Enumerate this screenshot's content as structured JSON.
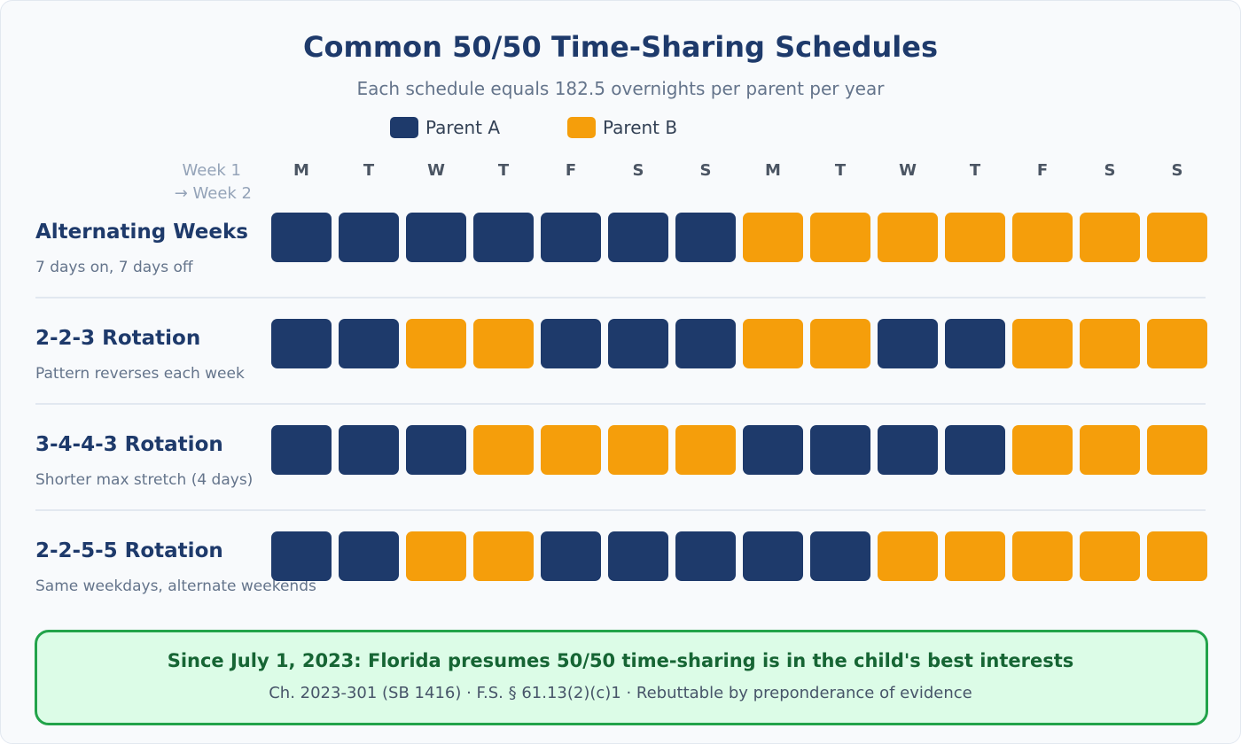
{
  "title": "Common 50/50 Time-Sharing Schedules",
  "subtitle": "Each schedule equals 182.5 overnights per parent per year",
  "legend": [
    {
      "label": "Parent A",
      "color": "#1e3a6b"
    },
    {
      "label": "Parent B",
      "color": "#f59e0b"
    }
  ],
  "week_label_1": "Week 1",
  "week_label_2": "→ Week 2",
  "days": [
    "M",
    "T",
    "W",
    "T",
    "F",
    "S",
    "S",
    "M",
    "T",
    "W",
    "T",
    "F",
    "S",
    "S"
  ],
  "schedules": [
    {
      "name": "Alternating Weeks",
      "description": "7 days on, 7 days off",
      "pattern": "AAAAAAABBBBBBB"
    },
    {
      "name": "2-2-3 Rotation",
      "description": "Pattern reverses each week",
      "pattern": "AABBAAABBAABBB"
    },
    {
      "name": "3-4-4-3 Rotation",
      "description": "Shorter max stretch (4 days)",
      "pattern": "AAABBBBAAAABBB"
    },
    {
      "name": "2-2-5-5 Rotation",
      "description": "Same weekdays, alternate weekends",
      "pattern": "AABBAAAAABBBBB"
    }
  ],
  "note": {
    "headline": "Since July 1, 2023: Florida presumes 50/50 time-sharing is in the child's best interests",
    "citation": "Ch. 2023-301 (SB 1416) · F.S. § 61.13(2)(c)1 · Rebuttable by preponderance of evidence"
  }
}
